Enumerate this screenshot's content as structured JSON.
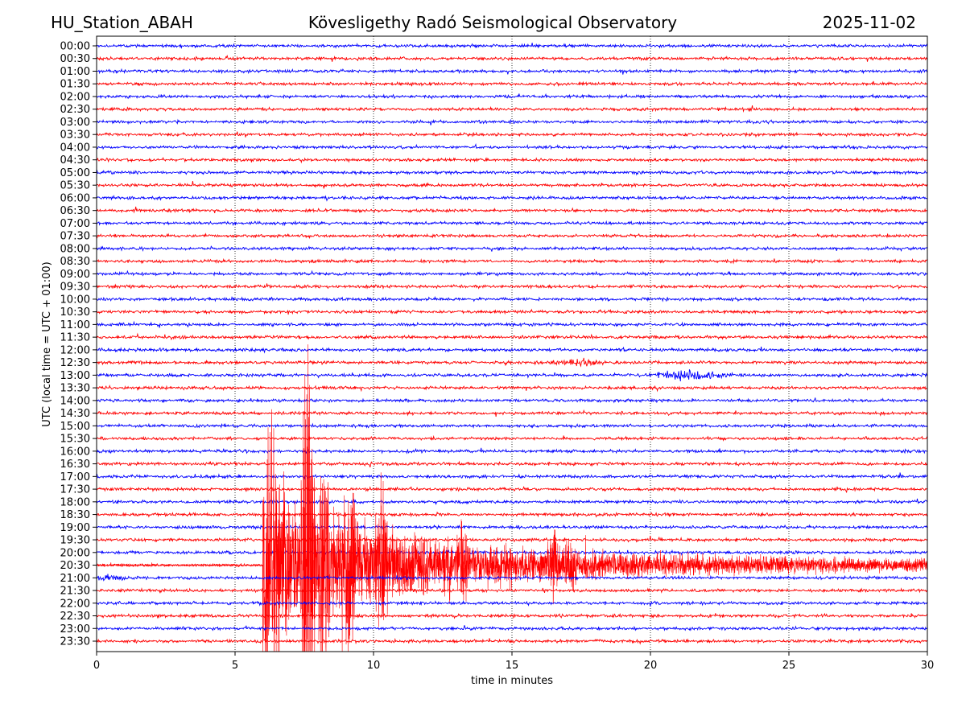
{
  "header": {
    "station": "HU_Station_ABAH",
    "observatory": "Kövesligethy Radó Seismological Observatory",
    "date": "2025-11-02"
  },
  "chart_data": {
    "type": "line",
    "title": "Kövesligethy Radó Seismological Observatory",
    "xlabel": "time in minutes",
    "ylabel": "UTC (local time = UTC + 01:00)",
    "xlim": [
      0,
      30
    ],
    "xticks": [
      "0",
      "5",
      "10",
      "15",
      "20",
      "25",
      "30"
    ],
    "grid": "vertical dotted at 5, 10, 15, 20, 25",
    "row_labels": [
      "00:00",
      "00:30",
      "01:00",
      "01:30",
      "02:00",
      "02:30",
      "03:00",
      "03:30",
      "04:00",
      "04:30",
      "05:00",
      "05:30",
      "06:00",
      "06:30",
      "07:00",
      "07:30",
      "08:00",
      "08:30",
      "09:00",
      "09:30",
      "10:00",
      "10:30",
      "11:00",
      "11:30",
      "12:00",
      "12:30",
      "13:00",
      "13:30",
      "14:00",
      "14:30",
      "15:00",
      "15:30",
      "16:00",
      "16:30",
      "17:00",
      "17:30",
      "18:00",
      "18:30",
      "19:00",
      "19:30",
      "20:00",
      "20:30",
      "21:00",
      "21:30",
      "22:00",
      "22:30",
      "23:00",
      "23:30"
    ],
    "row_colors": [
      "#0000ff",
      "#ff0000"
    ],
    "events": [
      {
        "row": "20:30",
        "onset_min": 6.0,
        "peak_min": 7.6,
        "end_min": 30,
        "strength": "large"
      },
      {
        "row": "13:00",
        "onset_min": 19.8,
        "peak_min": 21.4,
        "end_min": 23,
        "strength": "small"
      },
      {
        "row": "12:30",
        "onset_min": 16.5,
        "peak_min": 17.5,
        "end_min": 18.2,
        "strength": "weak"
      },
      {
        "row": "21:00",
        "onset_min": 0,
        "peak_min": 0.2,
        "end_min": 5,
        "strength": "weak"
      }
    ]
  }
}
